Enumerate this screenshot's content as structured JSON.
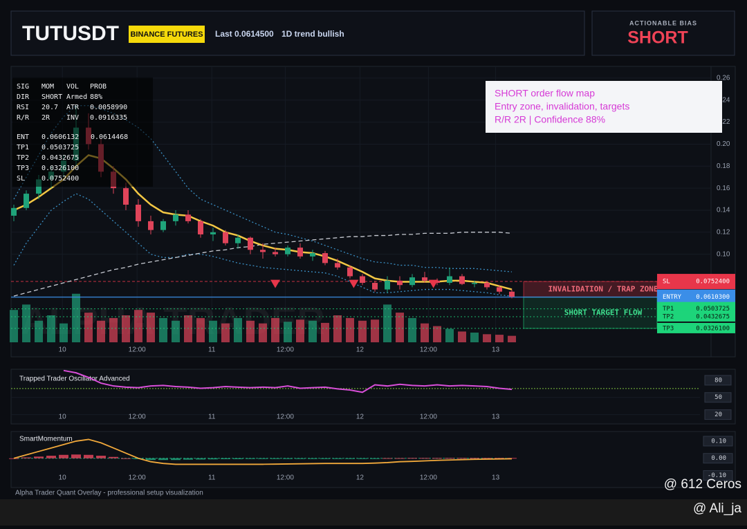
{
  "header": {
    "symbol": "TUTUSDT",
    "exchange": "BINANCE FUTURES",
    "last": "Last 0.0614500",
    "trend": "1D trend bullish"
  },
  "bias": {
    "label": "ACTIONABLE BIAS",
    "value": "SHORT"
  },
  "info_panel": {
    "blocks": [
      [
        [
          "SIG",
          "MOM",
          "VOL",
          "PROB"
        ],
        [
          "DIR",
          "SHORT",
          "Armed",
          "88%"
        ],
        [
          "RSI",
          "20.7",
          "ATR",
          "0.0058990"
        ],
        [
          "R/R",
          "2R",
          "INV",
          "0.0916335"
        ]
      ],
      [
        [
          "ENT",
          "0.0606132",
          "0.0614468"
        ],
        [
          "TP1",
          "0.0503725"
        ],
        [
          "TP2",
          "0.0432675"
        ],
        [
          "TP3",
          "0.0326100"
        ],
        [
          "SL",
          "0.0752400"
        ]
      ]
    ]
  },
  "overlay": {
    "lines": [
      "SHORT order flow map",
      "Entry zone, invalidation, targets",
      "R/R 2R | Confidence 88%"
    ]
  },
  "zones": {
    "invalidation": "INVALIDATION / TRAP ZONE",
    "target": "SHORT TARGET FLOW"
  },
  "watermark": "ALPHA TRADER",
  "footer": "Alpha Trader Quant Overlay - professional setup visualization",
  "credits": [
    "@ 612 Ceros",
    "@ Ali_ja"
  ],
  "chart_data": [
    {
      "type": "candlestick",
      "up_color": "#1fa37a",
      "down_color": "#e0445a",
      "candles": [
        [
          0.135,
          0.145,
          0.13,
          0.142
        ],
        [
          0.142,
          0.158,
          0.14,
          0.155
        ],
        [
          0.155,
          0.172,
          0.15,
          0.168
        ],
        [
          0.168,
          0.18,
          0.16,
          0.175
        ],
        [
          0.175,
          0.19,
          0.17,
          0.185
        ],
        [
          0.185,
          0.235,
          0.18,
          0.215
        ],
        [
          0.215,
          0.228,
          0.195,
          0.2
        ],
        [
          0.2,
          0.205,
          0.17,
          0.175
        ],
        [
          0.175,
          0.18,
          0.155,
          0.16
        ],
        [
          0.16,
          0.165,
          0.14,
          0.145
        ],
        [
          0.145,
          0.15,
          0.125,
          0.13
        ],
        [
          0.13,
          0.135,
          0.118,
          0.122
        ],
        [
          0.122,
          0.132,
          0.12,
          0.13
        ],
        [
          0.13,
          0.14,
          0.126,
          0.136
        ],
        [
          0.136,
          0.14,
          0.128,
          0.13
        ],
        [
          0.13,
          0.132,
          0.115,
          0.118
        ],
        [
          0.118,
          0.124,
          0.112,
          0.12
        ],
        [
          0.12,
          0.122,
          0.108,
          0.11
        ],
        [
          0.11,
          0.118,
          0.105,
          0.115
        ],
        [
          0.115,
          0.116,
          0.1,
          0.104
        ],
        [
          0.104,
          0.11,
          0.096,
          0.102
        ],
        [
          0.102,
          0.106,
          0.098,
          0.1
        ],
        [
          0.1,
          0.108,
          0.098,
          0.106
        ],
        [
          0.106,
          0.11,
          0.096,
          0.098
        ],
        [
          0.098,
          0.104,
          0.094,
          0.101
        ],
        [
          0.101,
          0.103,
          0.09,
          0.092
        ],
        [
          0.092,
          0.096,
          0.086,
          0.088
        ],
        [
          0.088,
          0.09,
          0.078,
          0.08
        ],
        [
          0.08,
          0.082,
          0.072,
          0.074
        ],
        [
          0.074,
          0.076,
          0.066,
          0.068
        ],
        [
          0.068,
          0.08,
          0.065,
          0.076
        ],
        [
          0.076,
          0.08,
          0.068,
          0.072
        ],
        [
          0.072,
          0.082,
          0.07,
          0.079
        ],
        [
          0.079,
          0.084,
          0.074,
          0.076
        ],
        [
          0.076,
          0.078,
          0.072,
          0.074
        ],
        [
          0.074,
          0.088,
          0.072,
          0.08
        ],
        [
          0.08,
          0.082,
          0.072,
          0.073
        ],
        [
          0.073,
          0.076,
          0.07,
          0.074
        ],
        [
          0.074,
          0.075,
          0.068,
          0.07
        ],
        [
          0.07,
          0.072,
          0.064,
          0.066
        ],
        [
          0.066,
          0.068,
          0.06,
          0.0614
        ]
      ],
      "volume": [
        60,
        70,
        40,
        50,
        35,
        90,
        55,
        40,
        45,
        50,
        60,
        55,
        45,
        40,
        50,
        45,
        40,
        35,
        45,
        40,
        35,
        45,
        38,
        42,
        40,
        36,
        50,
        45,
        40,
        42,
        70,
        55,
        45,
        35,
        30,
        25,
        20,
        18,
        15,
        14,
        12
      ],
      "volume_lim": [
        0,
        100
      ],
      "lines": [
        {
          "color": "#3a8fc4",
          "style": "dotted",
          "values": [
            0.15,
            0.17,
            0.19,
            0.21,
            0.225,
            0.235,
            0.235,
            0.232,
            0.228,
            0.222,
            0.215,
            0.205,
            0.19,
            0.175,
            0.16,
            0.15,
            0.145,
            0.14,
            0.135,
            0.13,
            0.125,
            0.12,
            0.118,
            0.115,
            0.112,
            0.108,
            0.104,
            0.1,
            0.096,
            0.093,
            0.092,
            0.09,
            0.09,
            0.088,
            0.088,
            0.087,
            0.087,
            0.087,
            0.086,
            0.085,
            0.084
          ]
        },
        {
          "color": "#3a8fc4",
          "style": "dotted",
          "values": [
            0.09,
            0.11,
            0.125,
            0.14,
            0.148,
            0.155,
            0.15,
            0.14,
            0.13,
            0.12,
            0.11,
            0.1,
            0.097,
            0.097,
            0.1,
            0.1,
            0.098,
            0.095,
            0.092,
            0.09,
            0.088,
            0.087,
            0.086,
            0.085,
            0.084,
            0.083,
            0.08,
            0.075,
            0.07,
            0.065,
            0.065,
            0.066,
            0.067,
            0.068,
            0.068,
            0.068,
            0.067,
            0.066,
            0.065,
            0.063,
            0.062
          ]
        },
        {
          "color": "#c9ccd4",
          "style": "dashed",
          "values": [
            0.062,
            0.065,
            0.068,
            0.071,
            0.074,
            0.077,
            0.08,
            0.083,
            0.086,
            0.088,
            0.091,
            0.093,
            0.095,
            0.097,
            0.099,
            0.101,
            0.103,
            0.104,
            0.106,
            0.107,
            0.109,
            0.11,
            0.111,
            0.112,
            0.113,
            0.114,
            0.115,
            0.116,
            0.116,
            0.117,
            0.117,
            0.118,
            0.118,
            0.119,
            0.119,
            0.119,
            0.12,
            0.12,
            0.12,
            0.12,
            0.119
          ]
        },
        {
          "color": "#f2c744",
          "style": "solid",
          "values": [
            0.14,
            0.145,
            0.152,
            0.16,
            0.168,
            0.18,
            0.19,
            0.187,
            0.178,
            0.168,
            0.155,
            0.145,
            0.138,
            0.136,
            0.135,
            0.13,
            0.126,
            0.12,
            0.117,
            0.112,
            0.108,
            0.105,
            0.104,
            0.102,
            0.101,
            0.098,
            0.094,
            0.089,
            0.084,
            0.078,
            0.076,
            0.075,
            0.075,
            0.075,
            0.075,
            0.076,
            0.076,
            0.075,
            0.074,
            0.071,
            0.068
          ]
        }
      ],
      "signals": [
        {
          "x": 21,
          "value": 0.073
        },
        {
          "x": 27.3,
          "value": 0.073
        },
        {
          "x": 33.7,
          "value": 0.073
        }
      ],
      "signal_color": "#e8364a",
      "levels": [
        {
          "name": "SL",
          "value": 0.07524,
          "label": "0.0752400",
          "color": "#e8364a"
        },
        {
          "name": "ENTRY",
          "value": 0.06103,
          "label": "0.0610300",
          "color": "#3b8ee8"
        },
        {
          "name": "TP1",
          "value": 0.0503725,
          "label": "0.0503725",
          "color": "#1dd47a"
        },
        {
          "name": "TP2",
          "value": 0.0432675,
          "label": "0.0432675",
          "color": "#1dd47a"
        },
        {
          "name": "TP3",
          "value": 0.03261,
          "label": "0.0326100",
          "color": "#1dd47a"
        }
      ],
      "xlim": [
        0,
        40
      ],
      "xticks": [
        {
          "value": 3.9,
          "label": "10"
        },
        {
          "value": 9.9,
          "label": "12:00"
        },
        {
          "value": 15.9,
          "label": "11"
        },
        {
          "value": 21.8,
          "label": "12:00"
        },
        {
          "value": 27.8,
          "label": "12"
        },
        {
          "value": 33.3,
          "label": "12:00"
        },
        {
          "value": 38.7,
          "label": "13"
        }
      ],
      "ylim": [
        0.02,
        0.27
      ],
      "yticks": [
        0.26,
        0.24,
        0.22,
        {
          "value": 0.2,
          "label": "0.20"
        },
        0.18,
        0.16,
        0.14,
        0.12,
        {
          "value": 0.1,
          "label": "0.10"
        }
      ],
      "grid": true
    },
    {
      "type": "line",
      "title": "Trapped Trader Oscillator Advanced",
      "color": "#d94fd9",
      "values": [
        null,
        null,
        null,
        null,
        97,
        93,
        85,
        75,
        70,
        68,
        67,
        70,
        71,
        69,
        68,
        66,
        67,
        69,
        68,
        67,
        68,
        67,
        70,
        66,
        67,
        68,
        65,
        63,
        59,
        72,
        70,
        73,
        71,
        70,
        72,
        70,
        71,
        70,
        69,
        66,
        64
      ],
      "xlim": [
        0,
        40
      ],
      "xticks": [
        {
          "value": 3.9,
          "label": "10"
        },
        {
          "value": 9.9,
          "label": "12:00"
        },
        {
          "value": 15.9,
          "label": "11"
        },
        {
          "value": 21.8,
          "label": "12:00"
        },
        {
          "value": 27.8,
          "label": "12"
        },
        {
          "value": 33.3,
          "label": "12:00"
        },
        {
          "value": 38.7,
          "label": "13"
        }
      ],
      "ylim": [
        5,
        98
      ],
      "yticks": [
        80,
        50,
        20
      ]
    },
    {
      "type": "momentum",
      "title": "SmartMomentum",
      "pos_color": "#1fa37a",
      "neg_color": "#e0445a",
      "values": [
        0.0,
        0.005,
        0.01,
        0.015,
        0.02,
        0.022,
        0.02,
        0.015,
        0.008,
        0.0,
        -0.005,
        -0.01,
        -0.01,
        -0.01,
        -0.008,
        -0.007,
        -0.006,
        -0.005,
        -0.005,
        -0.004,
        -0.004,
        -0.003,
        -0.003,
        -0.003,
        -0.002,
        -0.002,
        -0.002,
        -0.002,
        -0.002,
        -0.001,
        0.001,
        0.001,
        0.002,
        0.002,
        0.002,
        0.002,
        0.002,
        0.002,
        0.002,
        0.002,
        0.002
      ],
      "line": {
        "color": "#f2a93b",
        "values": [
          0.0,
          0.02,
          0.04,
          0.06,
          0.08,
          0.1,
          0.11,
          0.09,
          0.06,
          0.03,
          0.0,
          -0.02,
          -0.03,
          -0.035,
          -0.035,
          -0.035,
          -0.035,
          -0.035,
          -0.035,
          -0.035,
          -0.035,
          -0.034,
          -0.033,
          -0.032,
          -0.031,
          -0.03,
          -0.03,
          -0.03,
          -0.03,
          -0.028,
          -0.025,
          -0.02,
          -0.018,
          -0.015,
          -0.012,
          -0.01,
          -0.008,
          -0.006,
          -0.005,
          -0.004,
          -0.003
        ]
      },
      "xlim": [
        0,
        40
      ],
      "xticks": [
        {
          "value": 3.9,
          "label": "10"
        },
        {
          "value": 9.9,
          "label": "12:00"
        },
        {
          "value": 15.9,
          "label": "11"
        },
        {
          "value": 21.8,
          "label": "12:00"
        },
        {
          "value": 27.8,
          "label": "12"
        },
        {
          "value": 33.3,
          "label": "12:00"
        },
        {
          "value": 38.7,
          "label": "13"
        }
      ],
      "ylim": [
        -0.13,
        0.14
      ],
      "yticks": [
        {
          "value": 0.1,
          "label": "0.10"
        },
        {
          "value": 0,
          "label": "0.00"
        },
        {
          "value": -0.1,
          "label": "-0.10"
        }
      ]
    }
  ]
}
